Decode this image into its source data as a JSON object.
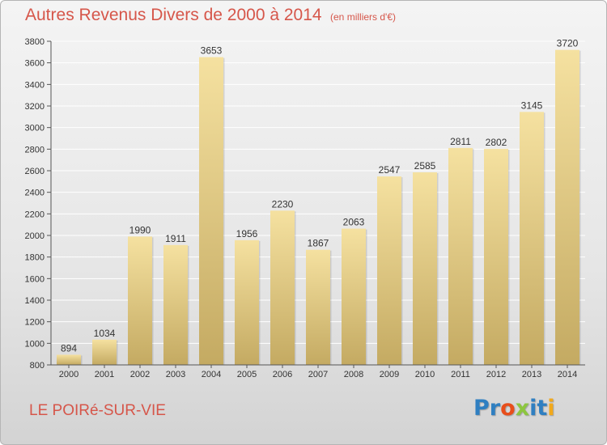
{
  "title": "Autres Revenus Divers de 2000 à 2014",
  "unit_note": "(en milliers d'€)",
  "place": "LE POIRé-SUR-VIE",
  "brand": {
    "text": "Proxiti",
    "letters": [
      "P",
      "r",
      "o",
      "x",
      "i",
      "t",
      "i"
    ],
    "letter_colors": [
      "#2f7fc1",
      "#2f7fc1",
      "#e84e1b",
      "#8dc63f",
      "#2f7fc1",
      "#2f7fc1",
      "#f2a91b"
    ]
  },
  "colors": {
    "title": "#d6564a",
    "bar_light": "#f5e1a0",
    "bar_dark": "#c4aa62",
    "grid": "#ffffff"
  },
  "chart_data": {
    "type": "bar",
    "categories": [
      "2000",
      "2001",
      "2002",
      "2003",
      "2004",
      "2005",
      "2006",
      "2007",
      "2008",
      "2009",
      "2010",
      "2011",
      "2012",
      "2013",
      "2014"
    ],
    "values": [
      894,
      1034,
      1990,
      1911,
      3653,
      1956,
      2230,
      1867,
      2063,
      2547,
      2585,
      2811,
      2802,
      3145,
      3720
    ],
    "ylim": [
      800,
      3800
    ],
    "yticks": [
      800,
      1000,
      1200,
      1400,
      1600,
      1800,
      2000,
      2200,
      2400,
      2600,
      2800,
      3000,
      3200,
      3400,
      3600,
      3800
    ],
    "grid": true,
    "data_labels": true,
    "xlabel": "",
    "ylabel": ""
  }
}
